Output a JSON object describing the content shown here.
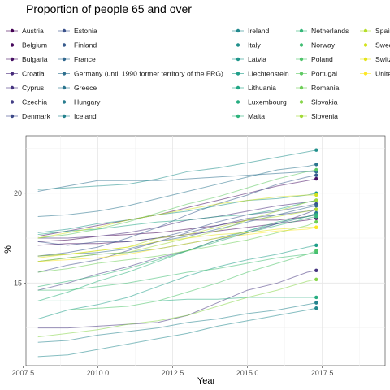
{
  "chart_data": {
    "type": "line",
    "title": "Proportion of people 65 and over",
    "xlabel": "Year",
    "ylabel": "%",
    "xlim": [
      2007.6,
      2019.6
    ],
    "ylim": [
      10.4,
      23.2
    ],
    "x_ticks": [
      2007.5,
      2010.0,
      2012.5,
      2015.0,
      2017.5
    ],
    "x_tick_labels": [
      "2007.5",
      "2010.0",
      "2012.5",
      "2015.0",
      "2017.5"
    ],
    "y_ticks": [
      15,
      20
    ],
    "y_tick_labels": [
      "15",
      "20"
    ],
    "grid": true,
    "legend_position": "top",
    "point_x": 2017.3,
    "x": [
      2008,
      2009,
      2010,
      2011,
      2012,
      2013,
      2014,
      2015,
      2016,
      2017,
      2017.3
    ],
    "series": [
      {
        "name": "Austria",
        "color": "#440154",
        "values": [
          17.3,
          17.4,
          17.6,
          17.7,
          17.8,
          18.0,
          18.2,
          18.5,
          18.5,
          18.7,
          18.8
        ]
      },
      {
        "name": "Belgium",
        "color": "#46085C",
        "values": [
          17.1,
          17.2,
          17.2,
          17.3,
          17.5,
          17.7,
          17.9,
          18.1,
          18.3,
          18.5,
          18.6
        ]
      },
      {
        "name": "Bulgaria",
        "color": "#471164",
        "values": [
          17.6,
          17.9,
          18.2,
          18.5,
          18.8,
          19.2,
          19.6,
          20.0,
          20.4,
          20.7,
          20.8
        ]
      },
      {
        "name": "Croatia",
        "color": "#472A7A",
        "values": [
          17.5,
          17.5,
          17.6,
          17.8,
          18.1,
          18.5,
          18.7,
          19.0,
          19.3,
          19.5,
          19.6
        ]
      },
      {
        "name": "Cyprus",
        "color": "#463480",
        "values": [
          12.5,
          12.5,
          12.6,
          12.7,
          12.8,
          13.2,
          13.9,
          14.6,
          15.0,
          15.6,
          15.7
        ]
      },
      {
        "name": "Czechia",
        "color": "#433E85",
        "values": [
          14.6,
          15.0,
          15.5,
          15.9,
          16.4,
          16.8,
          17.4,
          17.8,
          18.3,
          18.9,
          19.1
        ]
      },
      {
        "name": "Denmark",
        "color": "#3E4A89",
        "values": [
          15.6,
          16.0,
          16.3,
          16.8,
          17.3,
          17.8,
          18.2,
          18.6,
          18.8,
          19.0,
          19.1
        ]
      },
      {
        "name": "Estonia",
        "color": "#3B528B",
        "values": [
          17.3,
          17.1,
          17.3,
          17.3,
          17.5,
          17.9,
          18.4,
          18.8,
          19.0,
          19.3,
          19.4
        ]
      },
      {
        "name": "Finland",
        "color": "#375A8C",
        "values": [
          16.5,
          16.7,
          17.0,
          17.5,
          18.1,
          18.8,
          19.4,
          19.9,
          20.5,
          20.9,
          21.0
        ]
      },
      {
        "name": "France",
        "color": "#31688E",
        "values": [
          16.5,
          16.6,
          16.7,
          16.9,
          17.3,
          17.6,
          18.0,
          18.4,
          18.8,
          19.2,
          19.3
        ]
      },
      {
        "name": "Germany (until 1990 former territory of the FRG)",
        "color": "#2E6F8E",
        "values": [
          20.1,
          20.4,
          20.7,
          20.7,
          20.7,
          20.8,
          20.9,
          21.0,
          21.1,
          21.2,
          21.2
        ]
      },
      {
        "name": "Greece",
        "color": "#2B758E",
        "values": [
          18.7,
          18.8,
          19.0,
          19.3,
          19.7,
          20.1,
          20.5,
          20.9,
          21.3,
          21.5,
          21.6
        ]
      },
      {
        "name": "Hungary",
        "color": "#287C8E",
        "values": [
          16.2,
          16.4,
          16.6,
          16.7,
          16.9,
          17.2,
          17.5,
          17.9,
          18.3,
          18.7,
          18.9
        ]
      },
      {
        "name": "Iceland",
        "color": "#25838E",
        "values": [
          11.7,
          11.8,
          12.1,
          12.3,
          12.5,
          12.8,
          13.0,
          13.3,
          13.5,
          13.8,
          13.9
        ]
      },
      {
        "name": "Ireland",
        "color": "#23898E",
        "values": [
          10.9,
          11.0,
          11.3,
          11.6,
          11.9,
          12.2,
          12.6,
          12.9,
          13.2,
          13.5,
          13.6
        ]
      },
      {
        "name": "Italy",
        "color": "#21908C",
        "values": [
          20.2,
          20.3,
          20.4,
          20.5,
          20.8,
          21.2,
          21.4,
          21.7,
          22.0,
          22.3,
          22.4
        ]
      },
      {
        "name": "Latvia",
        "color": "#1F968B",
        "values": [
          17.8,
          18.0,
          18.3,
          18.5,
          18.8,
          19.0,
          19.3,
          19.6,
          19.7,
          19.9,
          20.0
        ]
      },
      {
        "name": "Liechtenstein",
        "color": "#1F9E89",
        "values": [
          13.0,
          13.5,
          13.8,
          14.2,
          14.8,
          15.4,
          15.9,
          16.3,
          16.6,
          17.0,
          17.1
        ]
      },
      {
        "name": "Lithuania",
        "color": "#21A685",
        "values": [
          17.7,
          17.9,
          18.0,
          18.2,
          18.4,
          18.5,
          18.7,
          18.8,
          19.1,
          19.5,
          19.6
        ]
      },
      {
        "name": "Luxembourg",
        "color": "#26AD81",
        "values": [
          14.0,
          14.0,
          14.0,
          14.0,
          14.0,
          14.1,
          14.1,
          14.2,
          14.2,
          14.2,
          14.2
        ]
      },
      {
        "name": "Malta",
        "color": "#2EB37C",
        "values": [
          14.0,
          14.5,
          15.1,
          15.6,
          16.2,
          16.8,
          17.4,
          17.9,
          18.4,
          18.7,
          18.8
        ]
      },
      {
        "name": "Netherlands",
        "color": "#35B779",
        "values": [
          14.8,
          15.1,
          15.4,
          15.8,
          16.3,
          16.8,
          17.3,
          17.8,
          18.2,
          18.6,
          18.7
        ]
      },
      {
        "name": "Norway",
        "color": "#40BD72",
        "values": [
          14.6,
          14.6,
          14.8,
          15.0,
          15.3,
          15.6,
          15.8,
          16.1,
          16.4,
          16.6,
          16.7
        ]
      },
      {
        "name": "Poland",
        "color": "#4FC46A",
        "values": [
          13.5,
          13.5,
          13.6,
          13.7,
          14.0,
          14.5,
          15.0,
          15.6,
          16.1,
          16.6,
          16.8
        ]
      },
      {
        "name": "Portugal",
        "color": "#5EC962",
        "values": [
          17.5,
          17.7,
          18.0,
          18.4,
          18.9,
          19.4,
          19.8,
          20.3,
          20.8,
          21.2,
          21.3
        ]
      },
      {
        "name": "Romania",
        "color": "#6ECE58",
        "values": [
          15.6,
          15.8,
          16.1,
          16.3,
          16.5,
          16.8,
          17.1,
          17.4,
          17.8,
          18.2,
          18.4
        ]
      },
      {
        "name": "Slovakia",
        "color": "#86D549",
        "values": [
          12.0,
          12.2,
          12.4,
          12.7,
          12.9,
          13.2,
          13.7,
          14.2,
          14.6,
          15.1,
          15.2
        ]
      },
      {
        "name": "Slovenia",
        "color": "#A2DA37",
        "values": [
          16.2,
          16.4,
          16.6,
          16.7,
          17.1,
          17.5,
          17.9,
          18.5,
          19.0,
          19.5,
          19.6
        ]
      },
      {
        "name": "Spain",
        "color": "#B5DE2B",
        "values": [
          16.5,
          16.6,
          16.8,
          17.0,
          17.5,
          17.7,
          18.1,
          18.5,
          18.7,
          19.0,
          19.1
        ]
      },
      {
        "name": "Sweden",
        "color": "#D2E21B",
        "values": [
          17.5,
          17.8,
          18.1,
          18.5,
          18.8,
          19.1,
          19.4,
          19.6,
          19.8,
          19.9,
          19.9
        ]
      },
      {
        "name": "Switzerland",
        "color": "#E5E419",
        "values": [
          16.4,
          16.6,
          16.8,
          17.0,
          17.3,
          17.5,
          17.7,
          17.8,
          18.0,
          18.1,
          18.1
        ]
      },
      {
        "name": "United Kingdom",
        "color": "#FDE725",
        "values": [
          16.2,
          16.3,
          16.4,
          16.6,
          16.9,
          17.2,
          17.5,
          17.7,
          17.9,
          18.0,
          18.1
        ]
      }
    ]
  }
}
